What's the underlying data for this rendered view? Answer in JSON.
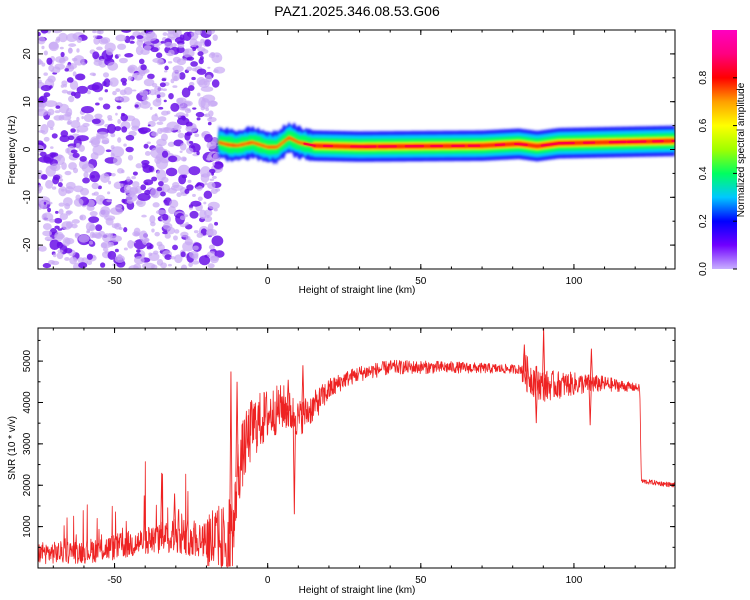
{
  "title": "PAZ1.2025.346.08.53.G06",
  "colors": {
    "snr_line": "#ee2222",
    "noise_purple": "#6a10e8",
    "noise_light": "#c8a8f4"
  },
  "chart_data": [
    {
      "type": "heatmap",
      "name": "spectrogram",
      "xlabel": "Height of straight line (km)",
      "ylabel": "Frequency (Hz)",
      "xlim": [
        -75,
        133
      ],
      "ylim": [
        -25,
        25
      ],
      "xticks": [
        "-50",
        "0",
        "50",
        "100"
      ],
      "xtick_values": [
        -50,
        0,
        50,
        100
      ],
      "yticks": [
        "-20",
        "-10",
        "0",
        "10",
        "20"
      ],
      "ytick_values": [
        -20,
        -10,
        0,
        10,
        20
      ],
      "noise_region_x": [
        -75,
        -17
      ],
      "ridge": [
        {
          "x": -16,
          "f": 1.5
        },
        {
          "x": -13,
          "f": 1.0
        },
        {
          "x": -10,
          "f": 0.8
        },
        {
          "x": -5,
          "f": 1.5
        },
        {
          "x": 0,
          "f": 0.5
        },
        {
          "x": 3,
          "f": 0.5
        },
        {
          "x": 7,
          "f": 2.5
        },
        {
          "x": 10,
          "f": 1.5
        },
        {
          "x": 15,
          "f": 0.8
        },
        {
          "x": 30,
          "f": 0.6
        },
        {
          "x": 50,
          "f": 0.7
        },
        {
          "x": 70,
          "f": 0.8
        },
        {
          "x": 82,
          "f": 1.2
        },
        {
          "x": 88,
          "f": 0.7
        },
        {
          "x": 95,
          "f": 1.3
        },
        {
          "x": 110,
          "f": 1.5
        },
        {
          "x": 133,
          "f": 1.8
        }
      ],
      "colorbar": {
        "label": "Normalized spectral amplitude",
        "ticks": [
          "0.0",
          "0.2",
          "0.4",
          "0.6",
          "0.8"
        ],
        "tick_values": [
          0,
          0.2,
          0.4,
          0.6,
          0.8
        ],
        "range": [
          0,
          1
        ],
        "stops": [
          "#c8b0ff",
          "#7000ff",
          "#0000ff",
          "#00c8ff",
          "#00ff60",
          "#a0ff00",
          "#ffff00",
          "#ffa000",
          "#ff0000",
          "#ff0080",
          "#ff00c0"
        ]
      }
    },
    {
      "type": "line",
      "name": "snr",
      "xlabel": "Height of straight line (km)",
      "ylabel": "SNR (10 * v/v)",
      "xlim": [
        -75,
        133
      ],
      "ylim": [
        0,
        5800
      ],
      "xticks": [
        "-50",
        "0",
        "50",
        "100"
      ],
      "xtick_values": [
        -50,
        0,
        50,
        100
      ],
      "yticks": [
        "1000",
        "2000",
        "3000",
        "4000",
        "5000"
      ],
      "ytick_values": [
        1000,
        2000,
        3000,
        4000,
        5000
      ],
      "trend": [
        {
          "x": -75,
          "y": 350
        },
        {
          "x": -60,
          "y": 400
        },
        {
          "x": -50,
          "y": 500
        },
        {
          "x": -40,
          "y": 650
        },
        {
          "x": -30,
          "y": 800
        },
        {
          "x": -20,
          "y": 700
        },
        {
          "x": -15,
          "y": 600
        },
        {
          "x": -11,
          "y": 900
        },
        {
          "x": -10,
          "y": 2200
        },
        {
          "x": -8,
          "y": 2800
        },
        {
          "x": -5,
          "y": 3400
        },
        {
          "x": 0,
          "y": 3700
        },
        {
          "x": 5,
          "y": 3900
        },
        {
          "x": 10,
          "y": 3600
        },
        {
          "x": 15,
          "y": 3900
        },
        {
          "x": 20,
          "y": 4300
        },
        {
          "x": 25,
          "y": 4550
        },
        {
          "x": 30,
          "y": 4700
        },
        {
          "x": 40,
          "y": 4850
        },
        {
          "x": 60,
          "y": 4850
        },
        {
          "x": 83,
          "y": 4800
        },
        {
          "x": 86,
          "y": 4600
        },
        {
          "x": 90,
          "y": 4400
        },
        {
          "x": 100,
          "y": 4450
        },
        {
          "x": 110,
          "y": 4450
        },
        {
          "x": 121.5,
          "y": 4350
        },
        {
          "x": 122,
          "y": 2100
        },
        {
          "x": 133,
          "y": 2000
        }
      ],
      "spikes": [
        {
          "x": -34.6,
          "y": 2300
        },
        {
          "x": -30.4,
          "y": 1800
        },
        {
          "x": -12.0,
          "y": 4750
        },
        {
          "x": -10.0,
          "y": 4500
        },
        {
          "x": 6.7,
          "y": 4550
        },
        {
          "x": 8.7,
          "y": 1300
        },
        {
          "x": 11.5,
          "y": 4900
        },
        {
          "x": 20.1,
          "y": 4450
        },
        {
          "x": 83.8,
          "y": 5400
        },
        {
          "x": 87.7,
          "y": 3500
        },
        {
          "x": 90.1,
          "y": 5800
        },
        {
          "x": 105.7,
          "y": 5300
        },
        {
          "x": 105.3,
          "y": 3450
        }
      ],
      "noise_amplitude": {
        "before": [
          [
            -75,
            250
          ],
          [
            -40,
            350
          ],
          [
            -20,
            500
          ]
        ],
        "transition": [
          [
            -12,
            900
          ],
          [
            10,
            450
          ]
        ],
        "plateau": [
          [
            25,
            200
          ],
          [
            80,
            110
          ]
        ],
        "ionosphere": [
          [
            84,
            450
          ],
          [
            100,
            280
          ],
          [
            121,
            90
          ]
        ],
        "tail": [
          [
            122,
            60
          ],
          [
            133,
            60
          ]
        ]
      }
    }
  ]
}
